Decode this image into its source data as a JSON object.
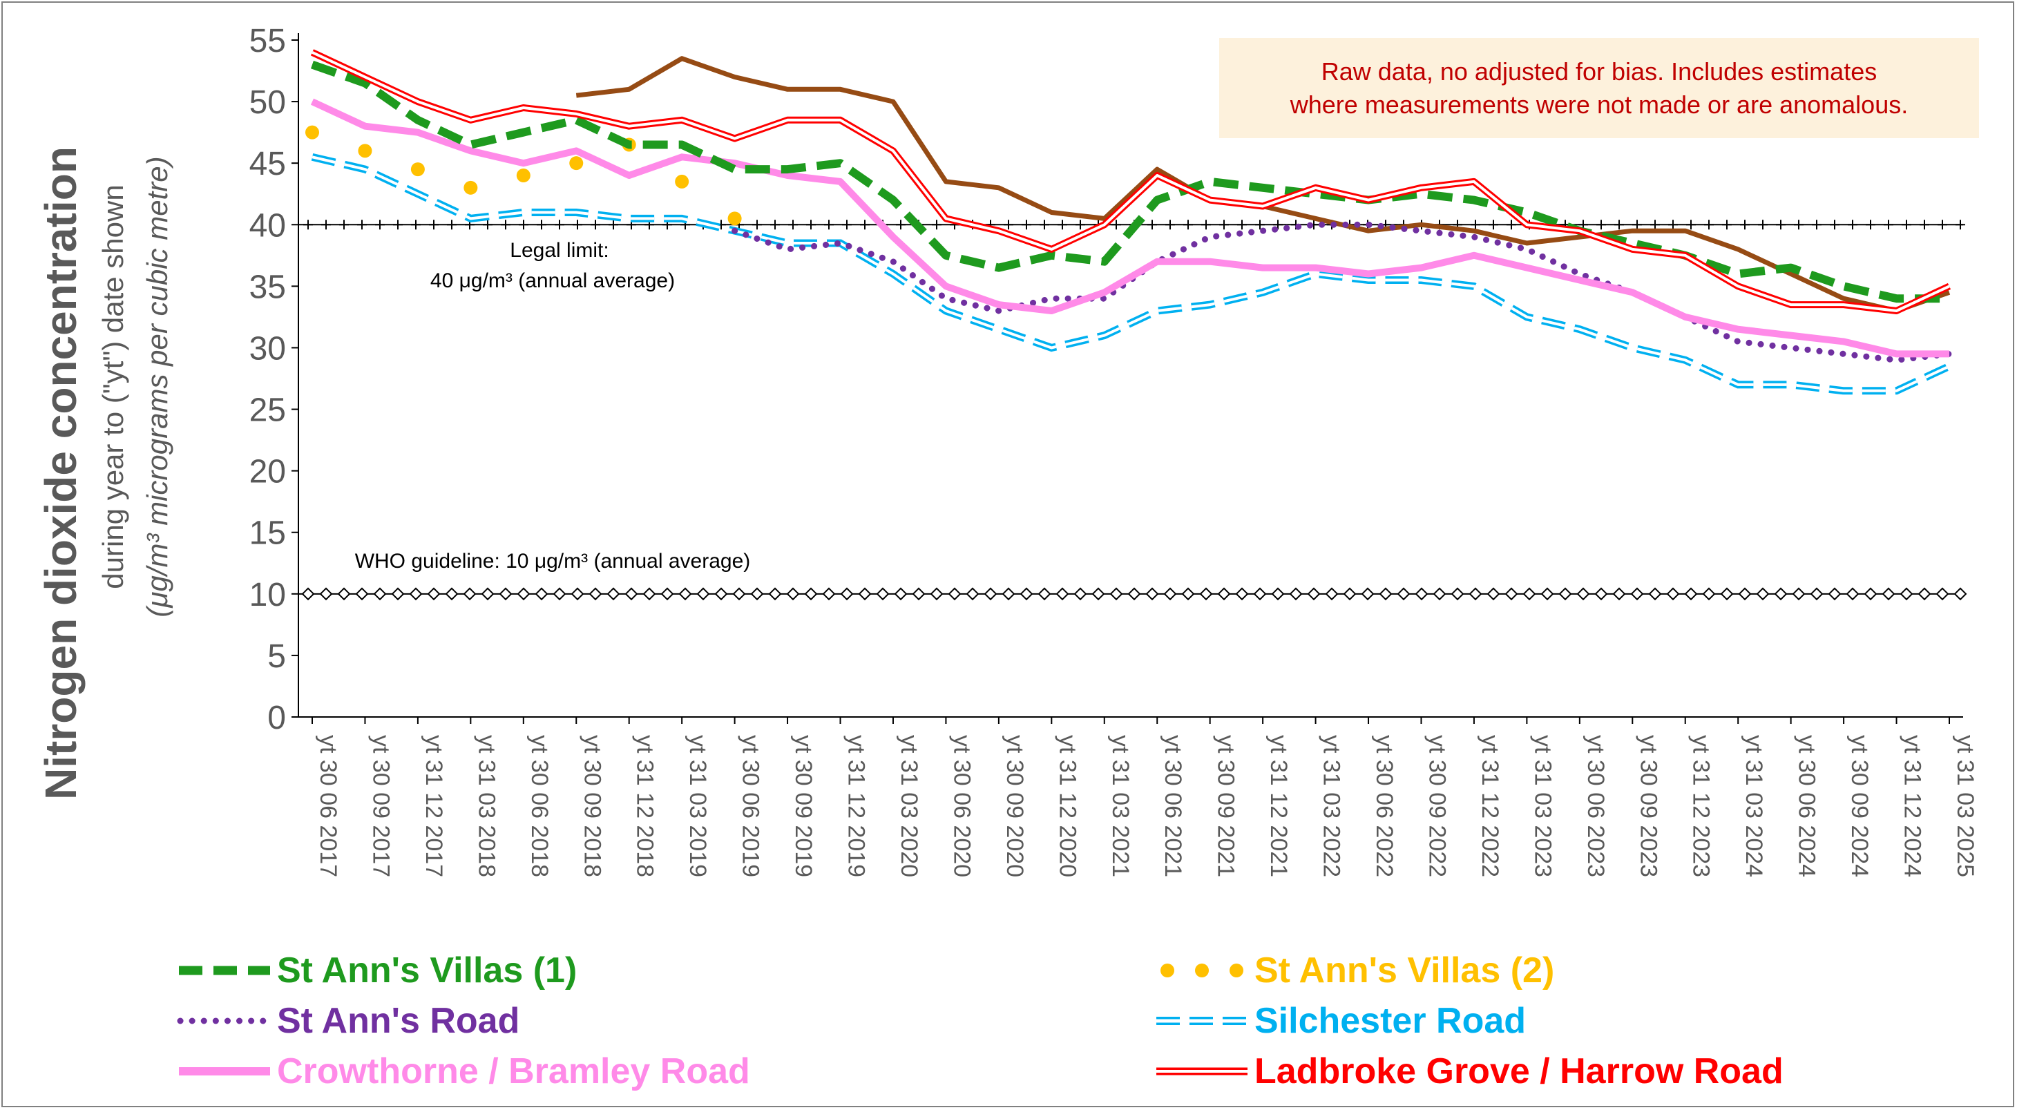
{
  "note": {
    "line1": "Raw data, no adjusted for bias.  Includes estimates",
    "line2": "where measurements were not made or are anomalous."
  },
  "axes": {
    "ylabel_main": "Nitrogen dioxide concentration",
    "ylabel_sub1": "during year to (\"yt\") date shown",
    "ylabel_sub2": "(μg/m³ micrograms per cubic metre)",
    "y_ticks": [
      "0",
      "5",
      "10",
      "15",
      "20",
      "25",
      "30",
      "35",
      "40",
      "45",
      "50",
      "55"
    ],
    "ylim": [
      0,
      55
    ]
  },
  "annotations": {
    "legal_limit_1": "Legal limit:",
    "legal_limit_2": "40 μg/m³ (annual average)",
    "who": "WHO guideline: 10 μg/m³ (annual average)"
  },
  "chart_data": {
    "type": "line",
    "x_labels": [
      "yt 30 06 2017",
      "yt 30 09 2017",
      "yt 31 12 2017",
      "yt 31 03 2018",
      "yt 30 06 2018",
      "yt 30 09 2018",
      "yt 31 12 2018",
      "yt 31 03 2019",
      "yt 30 06 2019",
      "yt 30 09 2019",
      "yt 31 12 2019",
      "yt 31 03 2020",
      "yt 30 06 2020",
      "yt 30 09 2020",
      "yt 31 12 2020",
      "yt 31 03 2021",
      "yt 30 06 2021",
      "yt 30 09 2021",
      "yt 31 12 2021",
      "yt 31 03 2022",
      "yt 30 06 2022",
      "yt 30 09 2022",
      "yt 31 12 2022",
      "yt 31 03 2023",
      "yt 30 06 2023",
      "yt 30 09 2023",
      "yt 31 12 2023",
      "yt 31 03 2024",
      "yt 30 06 2024",
      "yt 30 09 2024",
      "yt 31 12 2024",
      "yt 31 03 2025"
    ],
    "reference_lines": [
      {
        "name": "Legal limit",
        "value": 40
      },
      {
        "name": "WHO guideline",
        "value": 10
      }
    ],
    "series": [
      {
        "name": "St Ann's Villas (1)",
        "color": "#1e9a1e",
        "style": "thick-dash",
        "values": [
          53,
          51.5,
          48.5,
          46.5,
          47.5,
          48.5,
          46.5,
          46.5,
          44.5,
          44.5,
          45,
          42,
          37.5,
          36.5,
          37.5,
          37,
          42,
          43.5,
          43,
          42.5,
          42,
          42.5,
          42,
          41,
          39.5,
          38.5,
          37.5,
          36,
          36.5,
          35,
          34,
          34
        ]
      },
      {
        "name": "St Ann's Villas (2)",
        "color": "#ffc000",
        "style": "dots",
        "values": [
          47.5,
          46,
          44.5,
          43,
          44,
          45,
          46.5,
          43.5,
          40.5,
          null,
          null,
          null,
          null,
          null,
          null,
          null,
          null,
          null,
          null,
          null,
          null,
          null,
          null,
          null,
          null,
          null,
          null,
          null,
          null,
          null,
          null,
          null
        ]
      },
      {
        "name": "St Ann's Road",
        "color": "#7030a0",
        "style": "small-dots",
        "values": [
          null,
          null,
          null,
          null,
          null,
          null,
          null,
          null,
          39.5,
          38,
          38.5,
          37,
          34,
          33,
          34,
          34,
          37,
          39,
          39.5,
          40,
          40,
          39.5,
          39,
          38,
          36,
          34.5,
          32.5,
          30.5,
          30,
          29.5,
          29,
          29.5
        ]
      },
      {
        "name": "Silchester Road",
        "color": "#00b0f0",
        "style": "double-dash",
        "values": [
          45.5,
          44.5,
          42.5,
          40.5,
          41,
          41,
          40.5,
          40.5,
          39.5,
          38.5,
          38.5,
          36,
          33,
          31.5,
          30,
          31,
          33,
          33.5,
          34.5,
          36,
          35.5,
          35.5,
          35,
          32.5,
          31.5,
          30,
          29,
          27,
          27,
          26.5,
          26.5,
          28.5
        ]
      },
      {
        "name": "Crowthorne / Bramley Road",
        "color": "#ff8ae8",
        "style": "thick-solid",
        "values": [
          50,
          48,
          47.5,
          46,
          45,
          46,
          44,
          45.5,
          45,
          44,
          43.5,
          39,
          35,
          33.5,
          33,
          34.5,
          37,
          37,
          36.5,
          36.5,
          36,
          36.5,
          37.5,
          36.5,
          35.5,
          34.5,
          32.5,
          31.5,
          31,
          30.5,
          29.5,
          29.5
        ]
      },
      {
        "name": "Ladbroke Grove / Harrow Road",
        "color": "#ff0000",
        "style": "double-line",
        "values": [
          54,
          52,
          50,
          48.5,
          49.5,
          49,
          48,
          48.5,
          47,
          48.5,
          48.5,
          46,
          40.5,
          39.5,
          38,
          40,
          44,
          42,
          41.5,
          43,
          42,
          43,
          43.5,
          40,
          39.5,
          38,
          37.5,
          35,
          33.5,
          33.5,
          33,
          35
        ]
      },
      {
        "name": "Brown series",
        "color": "#964b14",
        "style": "solid",
        "legend": false,
        "values": [
          null,
          null,
          null,
          null,
          null,
          50.5,
          51,
          53.5,
          52,
          51,
          51,
          50,
          43.5,
          43,
          41,
          40.5,
          44.5,
          42,
          41.5,
          40.5,
          39.5,
          40,
          39.5,
          38.5,
          39,
          39.5,
          39.5,
          38,
          36,
          34,
          33,
          34.5
        ]
      }
    ]
  },
  "legend": [
    {
      "label": "St Ann's Villas (1)",
      "color": "#1e9a1e"
    },
    {
      "label": "St Ann's Villas (2)",
      "color": "#ffc000"
    },
    {
      "label": "St Ann's Road",
      "color": "#7030a0"
    },
    {
      "label": "Silchester Road",
      "color": "#00b0f0"
    },
    {
      "label": "Crowthorne / Bramley Road",
      "color": "#ff8ae8"
    },
    {
      "label": "Ladbroke Grove / Harrow Road",
      "color": "#ff0000"
    }
  ]
}
